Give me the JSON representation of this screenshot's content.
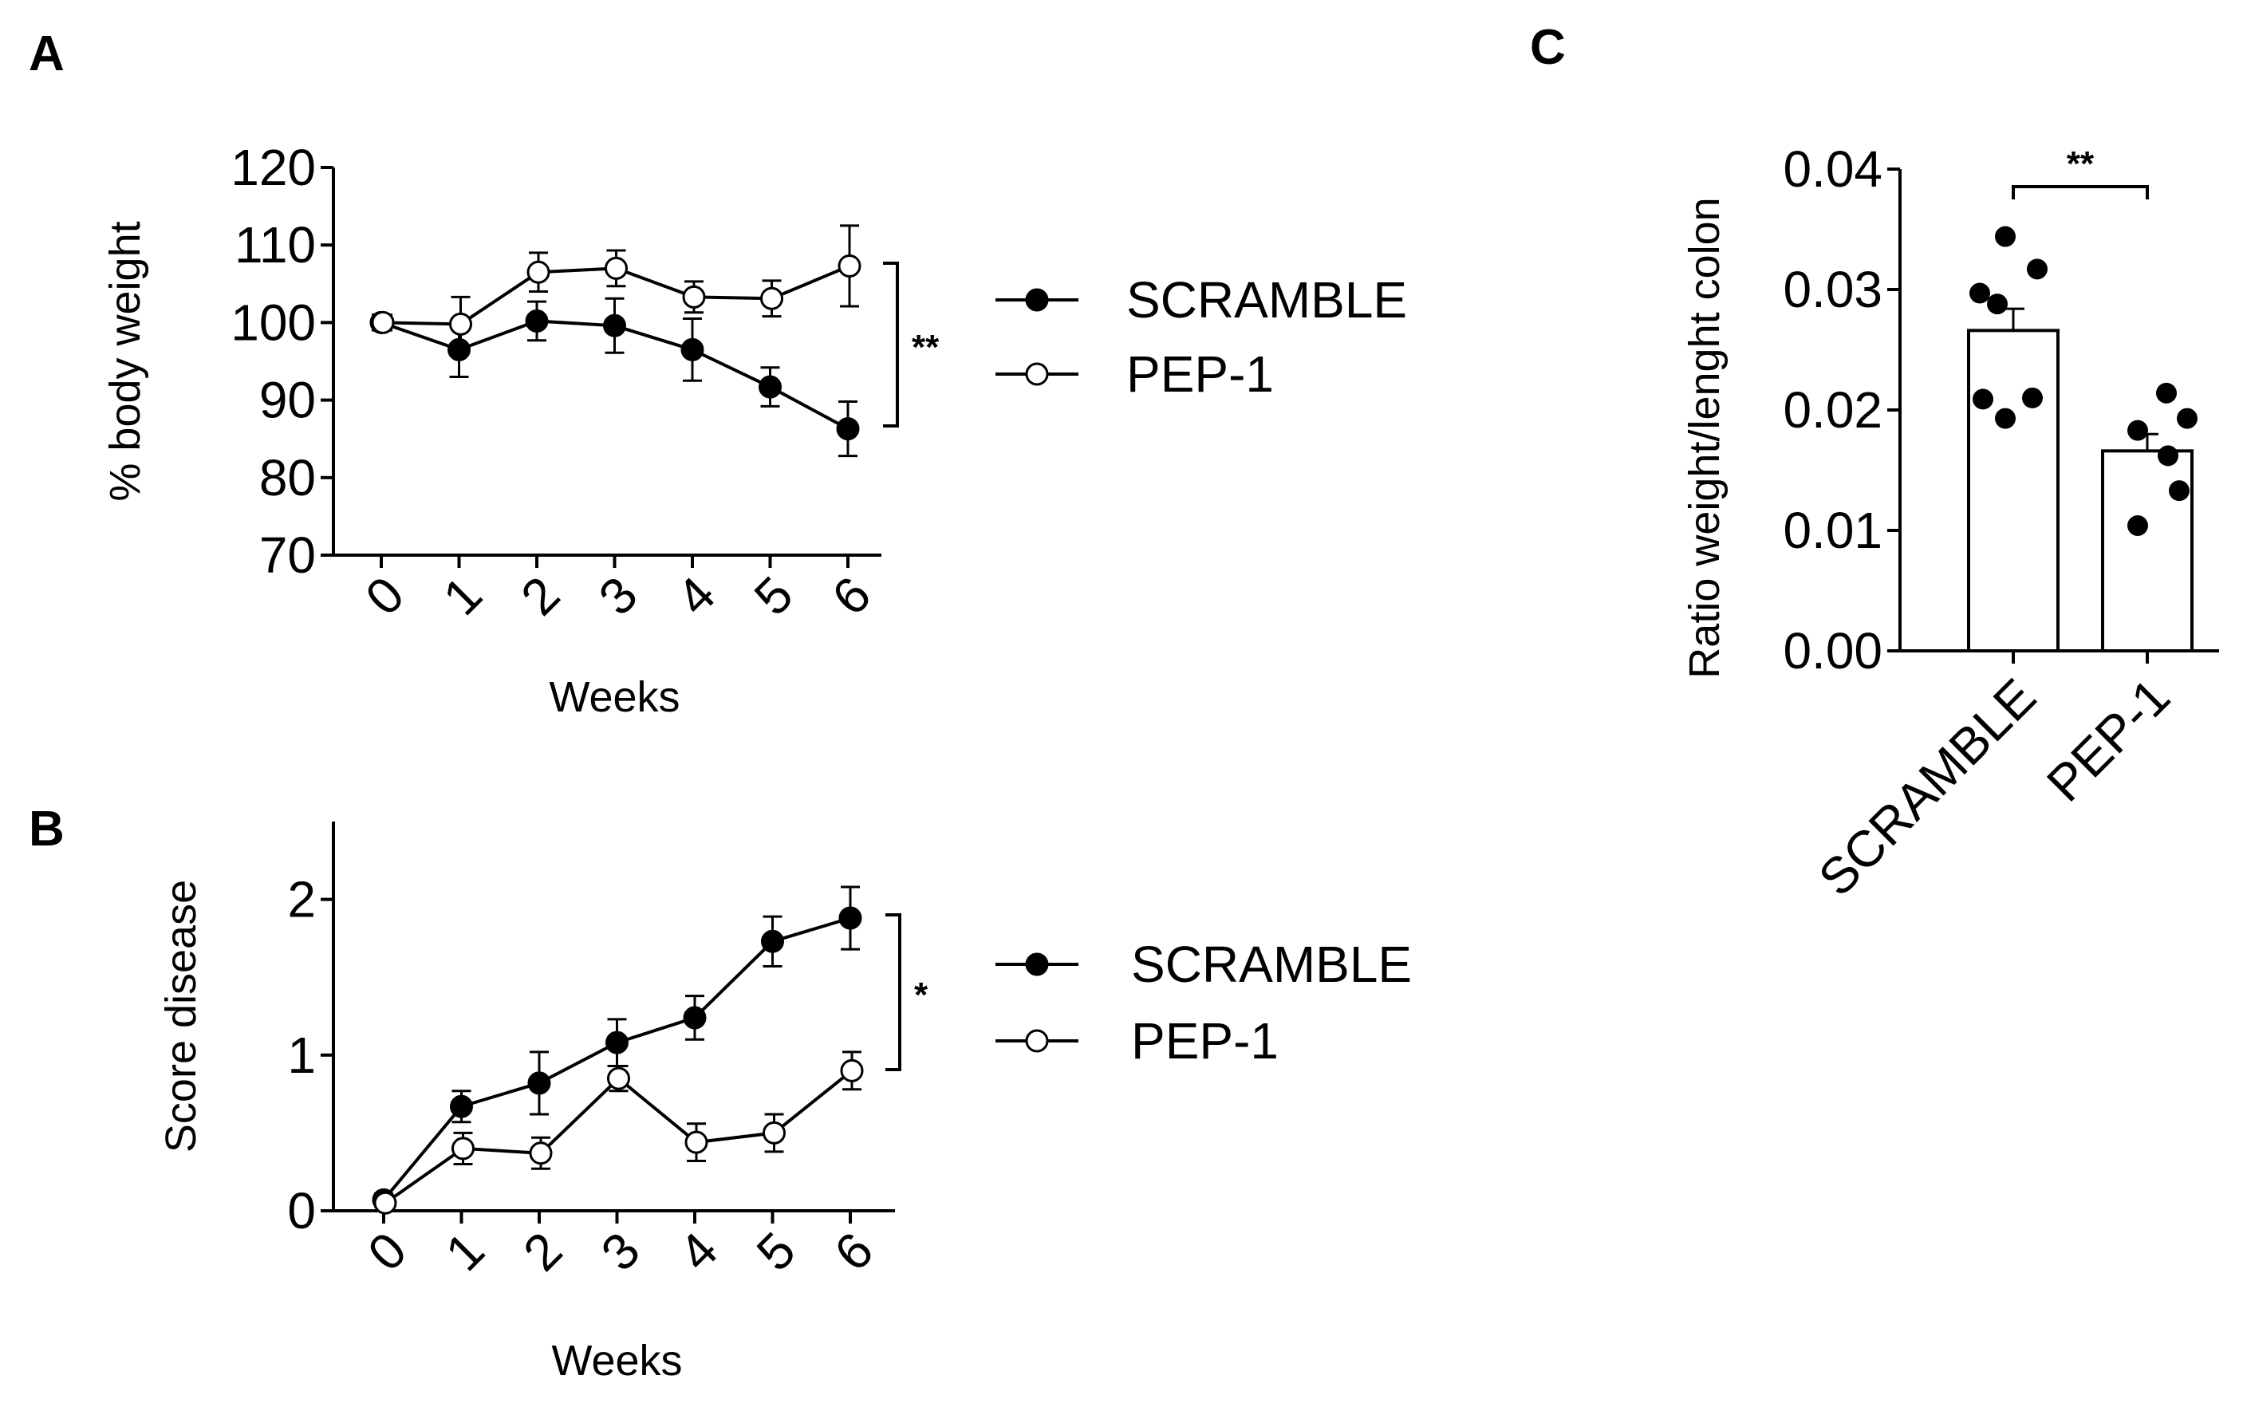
{
  "chart_data": [
    {
      "panel": "A",
      "type": "line",
      "xlabel": "Weeks",
      "ylabel": "% body weight",
      "categories": [
        "0",
        "1",
        "2",
        "3",
        "4",
        "5",
        "6"
      ],
      "yticks": [
        "70",
        "80",
        "90",
        "100",
        "110",
        "120"
      ],
      "ylim": [
        70,
        120
      ],
      "series": [
        {
          "name": "SCRAMBLE",
          "marker": "filled",
          "values": [
            100,
            96.5,
            100.2,
            99.6,
            96.5,
            91.7,
            86.3
          ],
          "errors": [
            1.0,
            3.5,
            2.5,
            3.5,
            4.0,
            2.5,
            3.5
          ]
        },
        {
          "name": "PEP-1",
          "marker": "open",
          "values": [
            100,
            99.8,
            106.5,
            107.0,
            103.3,
            103.1,
            107.3
          ],
          "errors": [
            1.0,
            3.5,
            2.5,
            2.3,
            2.0,
            2.3,
            5.2
          ]
        }
      ],
      "significance": "**"
    },
    {
      "panel": "B",
      "type": "line",
      "xlabel": "Weeks",
      "ylabel": "Score disease",
      "categories": [
        "0",
        "1",
        "2",
        "3",
        "4",
        "5",
        "6"
      ],
      "yticks": [
        "0",
        "1",
        "2"
      ],
      "ylim": [
        0,
        2.5
      ],
      "series": [
        {
          "name": "SCRAMBLE",
          "marker": "filled",
          "values": [
            0.07,
            0.67,
            0.82,
            1.08,
            1.24,
            1.73,
            1.88
          ],
          "errors": [
            0.04,
            0.1,
            0.2,
            0.15,
            0.14,
            0.16,
            0.2
          ]
        },
        {
          "name": "PEP-1",
          "marker": "open",
          "values": [
            0.05,
            0.4,
            0.37,
            0.85,
            0.44,
            0.5,
            0.9
          ],
          "errors": [
            0.04,
            0.1,
            0.1,
            0.08,
            0.12,
            0.12,
            0.12
          ]
        }
      ],
      "significance": "*"
    },
    {
      "panel": "C",
      "type": "bar",
      "ylabel": "Ratio weight/lenght colon",
      "categories": [
        "SCRAMBLE",
        "PEP-1"
      ],
      "yticks": [
        "0.00",
        "0.01",
        "0.02",
        "0.03",
        "0.04"
      ],
      "ylim": [
        0,
        0.04
      ],
      "values": [
        0.0266,
        0.0166
      ],
      "errors": [
        0.0018,
        0.0014
      ],
      "points": [
        [
          0.0344,
          0.0317,
          0.0297,
          0.0288,
          0.0209,
          0.021,
          0.0193
        ],
        [
          0.0214,
          0.0193,
          0.0183,
          0.0162,
          0.0133,
          0.0104
        ]
      ],
      "significance": "**"
    }
  ]
}
